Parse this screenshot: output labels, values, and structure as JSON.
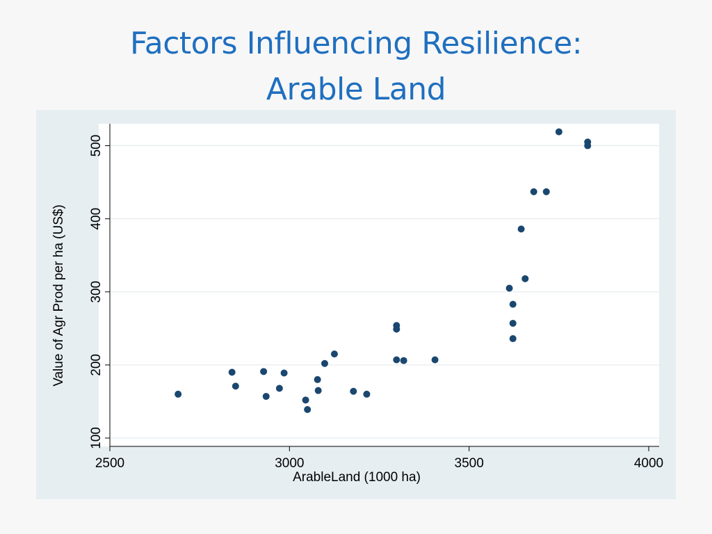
{
  "slide": {
    "title_line1": "Factors Influencing Resilience:",
    "title_line2": "Arable Land"
  },
  "colors": {
    "title": "#1f6fbf",
    "frame": "#e6eef2",
    "plot_bg": "#ffffff",
    "grid": "#e2e8ec",
    "marker": "#1a476f"
  },
  "chart_data": {
    "type": "scatter",
    "xlabel": "ArableLand (1000 ha)",
    "ylabel": "Value of Agr Prod per ha (US$)",
    "xlim": [
      2500,
      4000
    ],
    "ylim": [
      100,
      530
    ],
    "xticks": [
      2500,
      3000,
      3500,
      4000
    ],
    "yticks": [
      100,
      200,
      300,
      400,
      500
    ],
    "grid": "horizontal",
    "points": [
      {
        "x": 2690,
        "y": 160
      },
      {
        "x": 2840,
        "y": 190
      },
      {
        "x": 2850,
        "y": 171
      },
      {
        "x": 2928,
        "y": 191
      },
      {
        "x": 2935,
        "y": 157
      },
      {
        "x": 2972,
        "y": 168
      },
      {
        "x": 2985,
        "y": 189
      },
      {
        "x": 3045,
        "y": 152
      },
      {
        "x": 3050,
        "y": 139
      },
      {
        "x": 3078,
        "y": 180
      },
      {
        "x": 3080,
        "y": 165
      },
      {
        "x": 3098,
        "y": 202
      },
      {
        "x": 3125,
        "y": 215
      },
      {
        "x": 3178,
        "y": 164
      },
      {
        "x": 3215,
        "y": 160
      },
      {
        "x": 3298,
        "y": 254
      },
      {
        "x": 3298,
        "y": 249
      },
      {
        "x": 3298,
        "y": 207
      },
      {
        "x": 3318,
        "y": 206
      },
      {
        "x": 3405,
        "y": 207
      },
      {
        "x": 3612,
        "y": 305
      },
      {
        "x": 3622,
        "y": 283
      },
      {
        "x": 3622,
        "y": 257
      },
      {
        "x": 3622,
        "y": 236
      },
      {
        "x": 3645,
        "y": 386
      },
      {
        "x": 3656,
        "y": 318
      },
      {
        "x": 3680,
        "y": 437
      },
      {
        "x": 3715,
        "y": 437
      },
      {
        "x": 3750,
        "y": 519
      },
      {
        "x": 3830,
        "y": 505
      },
      {
        "x": 3830,
        "y": 500
      }
    ]
  }
}
